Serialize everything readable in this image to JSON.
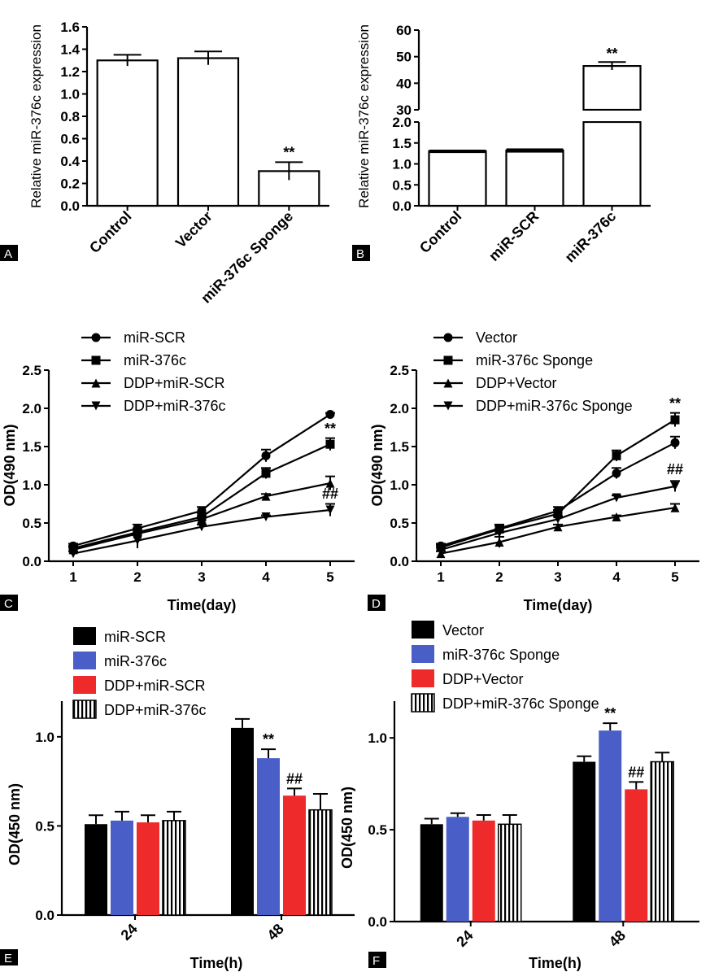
{
  "colors": {
    "black": "#000000",
    "blue": "#4a5ec8",
    "red": "#ee2a2a",
    "white": "#ffffff"
  },
  "panels": {
    "A": {
      "label": "A"
    },
    "B": {
      "label": "B"
    },
    "C": {
      "label": "C"
    },
    "D": {
      "label": "D"
    },
    "E": {
      "label": "E"
    },
    "F": {
      "label": "F"
    }
  },
  "chart_data": [
    {
      "id": "A",
      "type": "bar",
      "ylabel": "Relative miR-376c expression",
      "categories": [
        "Control",
        "Vector",
        "miR-376c Sponge"
      ],
      "values": [
        1.3,
        1.32,
        0.31
      ],
      "errors": [
        0.05,
        0.06,
        0.08
      ],
      "annotations": [
        "",
        "",
        "**"
      ],
      "ylim": [
        0,
        1.6
      ],
      "yticks": [
        "0.0",
        "0.2",
        "0.4",
        "0.6",
        "0.8",
        "1.0",
        "1.2",
        "1.4",
        "1.6"
      ]
    },
    {
      "id": "B",
      "type": "bar",
      "ylabel": "Relative miR-376c expression",
      "categories": [
        "Control",
        "miR-SCR",
        "miR-376c"
      ],
      "values": [
        1.3,
        1.32,
        46.5
      ],
      "errors": [
        0.04,
        0.05,
        1.5
      ],
      "annotations": [
        "",
        "",
        "**"
      ],
      "broken_axis": {
        "lower": [
          0,
          2.0
        ],
        "upper": [
          30,
          60
        ]
      },
      "yticks_lower": [
        "0.0",
        "0.5",
        "1.0",
        "1.5",
        "2.0"
      ],
      "yticks_upper": [
        "30",
        "40",
        "50",
        "60"
      ]
    },
    {
      "id": "C",
      "type": "line",
      "xlabel": "Time(day)",
      "ylabel": "OD(490 nm)",
      "x": [
        1,
        2,
        3,
        4,
        5
      ],
      "xticks": [
        "1",
        "2",
        "3",
        "4",
        "5"
      ],
      "yticks": [
        "0.0",
        "0.5",
        "1.0",
        "1.5",
        "2.0",
        "2.5"
      ],
      "ylim": [
        0,
        2.5
      ],
      "series": [
        {
          "name": "miR-SCR",
          "marker": "circle",
          "values": [
            0.2,
            0.43,
            0.66,
            1.38,
            1.92
          ],
          "errors": [
            0.03,
            0.05,
            0.05,
            0.08,
            0.02
          ]
        },
        {
          "name": "miR-376c",
          "marker": "square",
          "values": [
            0.17,
            0.38,
            0.58,
            1.15,
            1.53
          ],
          "errors": [
            0.03,
            0.05,
            0.05,
            0.07,
            0.08
          ]
        },
        {
          "name": "DDP+miR-SCR",
          "marker": "triangle-up",
          "values": [
            0.15,
            0.36,
            0.55,
            0.85,
            1.02
          ],
          "errors": [
            0.03,
            0.04,
            0.04,
            0.03,
            0.09
          ]
        },
        {
          "name": "DDP+miR-376c",
          "marker": "triangle-down",
          "values": [
            0.1,
            0.27,
            0.45,
            0.58,
            0.67
          ],
          "errors": [
            0.03,
            0.1,
            0.03,
            0.02,
            0.08
          ]
        }
      ],
      "annotations": [
        {
          "text": "**",
          "x": 5,
          "y": 1.67
        },
        {
          "text": "##",
          "x": 5,
          "y": 0.82
        }
      ]
    },
    {
      "id": "D",
      "type": "line",
      "xlabel": "Time(day)",
      "ylabel": "OD(490 nm)",
      "x": [
        1,
        2,
        3,
        4,
        5
      ],
      "xticks": [
        "1",
        "2",
        "3",
        "4",
        "5"
      ],
      "yticks": [
        "0.0",
        "0.5",
        "1.0",
        "1.5",
        "2.0",
        "2.5"
      ],
      "ylim": [
        0,
        2.5
      ],
      "series": [
        {
          "name": "Vector",
          "marker": "circle",
          "values": [
            0.2,
            0.43,
            0.66,
            1.15,
            1.55
          ],
          "errors": [
            0.03,
            0.05,
            0.05,
            0.07,
            0.08
          ]
        },
        {
          "name": "miR-376c Sponge",
          "marker": "square",
          "values": [
            0.18,
            0.42,
            0.62,
            1.38,
            1.85
          ],
          "errors": [
            0.03,
            0.05,
            0.05,
            0.07,
            0.09
          ]
        },
        {
          "name": "DDP+Vector",
          "marker": "triangle-up",
          "values": [
            0.1,
            0.25,
            0.45,
            0.58,
            0.7
          ],
          "errors": [
            0.03,
            0.07,
            0.03,
            0.02,
            0.05
          ]
        },
        {
          "name": "DDP+miR-376c Sponge",
          "marker": "triangle-down",
          "values": [
            0.15,
            0.37,
            0.55,
            0.83,
            0.98
          ],
          "errors": [
            0.03,
            0.05,
            0.04,
            0.03,
            0.07
          ]
        }
      ],
      "annotations": [
        {
          "text": "**",
          "x": 5,
          "y": 2.0
        },
        {
          "text": "##",
          "x": 5,
          "y": 1.14
        }
      ]
    },
    {
      "id": "E",
      "type": "bar",
      "xlabel": "Time(h)",
      "ylabel": "OD(450 nm)",
      "categories": [
        "24",
        "48"
      ],
      "yticks": [
        "0.0",
        "0.5",
        "1.0"
      ],
      "ylim": [
        0,
        1.2
      ],
      "series": [
        {
          "name": "miR-SCR",
          "color": "#000000",
          "pattern": "solid",
          "values": [
            0.51,
            1.05
          ],
          "errors": [
            0.05,
            0.05
          ]
        },
        {
          "name": "miR-376c",
          "color": "#4a5ec8",
          "pattern": "solid",
          "values": [
            0.53,
            0.88
          ],
          "errors": [
            0.05,
            0.05
          ]
        },
        {
          "name": "DDP+miR-SCR",
          "color": "#ee2a2a",
          "pattern": "solid",
          "values": [
            0.52,
            0.67
          ],
          "errors": [
            0.04,
            0.04
          ]
        },
        {
          "name": "DDP+miR-376c",
          "color": "#ffffff",
          "pattern": "vertical-stripes",
          "values": [
            0.53,
            0.59
          ],
          "errors": [
            0.05,
            0.09
          ]
        }
      ],
      "annotations": [
        {
          "text": "**",
          "category": "48",
          "series": 1
        },
        {
          "text": "##",
          "category": "48",
          "series": 2
        }
      ]
    },
    {
      "id": "F",
      "type": "bar",
      "xlabel": "Time(h)",
      "ylabel": "OD(450 nm)",
      "categories": [
        "24",
        "48"
      ],
      "yticks": [
        "0.0",
        "0.5",
        "1.0"
      ],
      "ylim": [
        0,
        1.2
      ],
      "series": [
        {
          "name": "Vector",
          "color": "#000000",
          "pattern": "solid",
          "values": [
            0.53,
            0.87
          ],
          "errors": [
            0.03,
            0.03
          ]
        },
        {
          "name": "miR-376c Sponge",
          "color": "#4a5ec8",
          "pattern": "solid",
          "values": [
            0.57,
            1.04
          ],
          "errors": [
            0.02,
            0.04
          ]
        },
        {
          "name": "DDP+Vector",
          "color": "#ee2a2a",
          "pattern": "solid",
          "values": [
            0.55,
            0.72
          ],
          "errors": [
            0.03,
            0.04
          ]
        },
        {
          "name": "DDP+miR-376c Sponge",
          "color": "#ffffff",
          "pattern": "vertical-stripes",
          "values": [
            0.53,
            0.87
          ],
          "errors": [
            0.05,
            0.05
          ]
        }
      ],
      "annotations": [
        {
          "text": "**",
          "category": "48",
          "series": 1
        },
        {
          "text": "##",
          "category": "48",
          "series": 2
        }
      ]
    }
  ]
}
